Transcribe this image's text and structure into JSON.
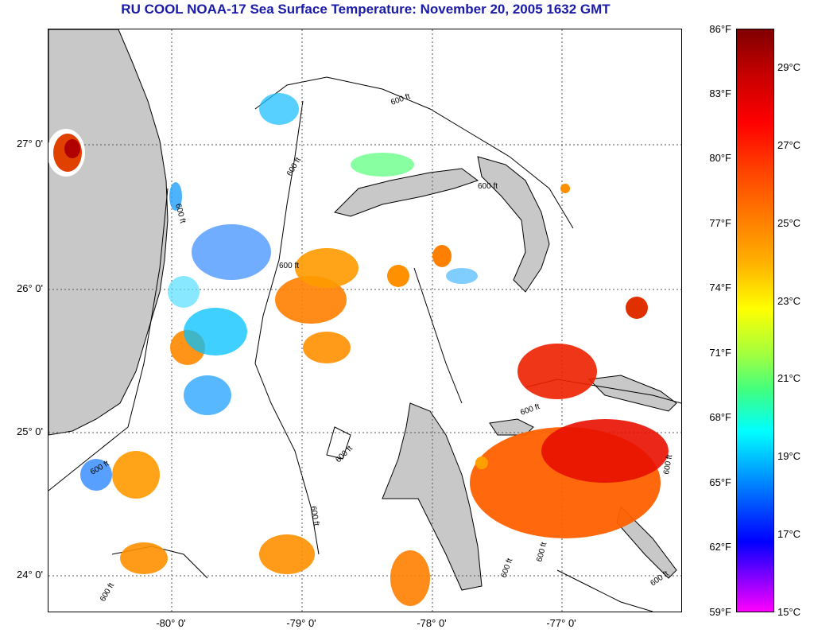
{
  "title": "RU COOL  NOAA-17  Sea Surface Temperature:  November 20, 2005 1632 GMT",
  "lat_labels": [
    "27° 0'",
    "26° 0'",
    "25° 0'",
    "24° 0'"
  ],
  "lon_labels": [
    "-80° 0'",
    "-79° 0'",
    "-78° 0'",
    "-77° 0'"
  ],
  "contour_label": "600 ft",
  "colorbar": {
    "fahrenheit": [
      "86°F",
      "83°F",
      "80°F",
      "77°F",
      "74°F",
      "71°F",
      "68°F",
      "65°F",
      "62°F",
      "59°F"
    ],
    "celsius": [
      "29°C",
      "27°C",
      "25°C",
      "23°C",
      "21°C",
      "19°C",
      "17°C",
      "15°C"
    ]
  },
  "land_color": "#c8c8c8"
}
